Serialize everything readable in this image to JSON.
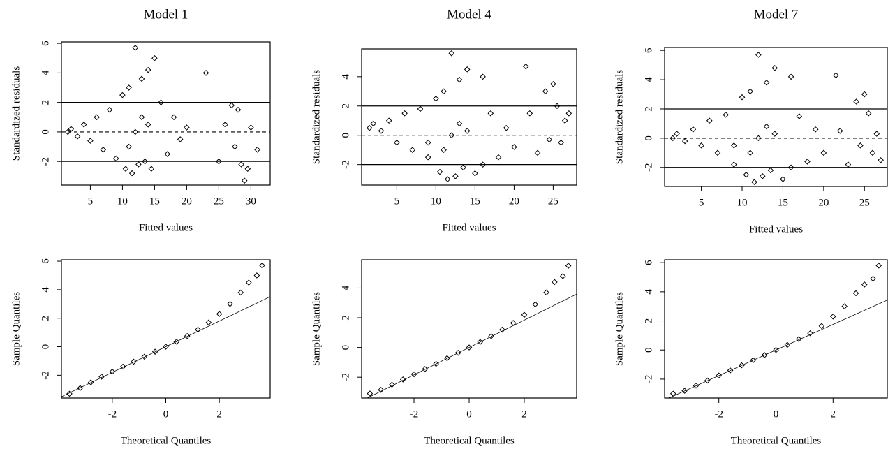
{
  "chart_data": [
    {
      "type": "scatter",
      "title": "Model 1",
      "x_label": "Fitted values",
      "y_label": "Standardized residuals",
      "xlim": [
        0.5,
        33
      ],
      "ylim": [
        -3.6,
        6.1
      ],
      "xticks": [
        5,
        10,
        15,
        20,
        25,
        30
      ],
      "yticks": [
        -2,
        0,
        2,
        4,
        6
      ],
      "hlines": [
        {
          "value": 2,
          "style": "solid"
        },
        {
          "value": 0,
          "style": "dashed"
        },
        {
          "value": -2,
          "style": "solid"
        }
      ],
      "series": [
        {
          "color": "#000000",
          "x": [
            1.5,
            2,
            3,
            4,
            5,
            6,
            7,
            8,
            9,
            10,
            10.5,
            11,
            11.5,
            12,
            12.5,
            13,
            13.5,
            14,
            14.5,
            15,
            16,
            17,
            18,
            19,
            20,
            23,
            25,
            26,
            27,
            27.5,
            28,
            28.5,
            29,
            29.5,
            30,
            31,
            12,
            13,
            11,
            14
          ],
          "values": [
            0,
            0.2,
            -0.3,
            0.5,
            -0.6,
            1,
            -1.2,
            1.5,
            -1.8,
            2.5,
            -2.5,
            3,
            -2.8,
            5.7,
            -2.2,
            3.6,
            -2,
            4.2,
            -2.5,
            5,
            2,
            -1.5,
            1,
            -0.5,
            0.3,
            4,
            -2,
            0.5,
            1.8,
            -1,
            1.5,
            -2.2,
            -3.3,
            -2.5,
            0.3,
            -1.2,
            0,
            1,
            -1,
            0.5
          ]
        }
      ]
    },
    {
      "type": "scatter",
      "title": "Model 4",
      "x_label": "Fitted values",
      "y_label": "Standardized residuals",
      "xlim": [
        0.5,
        28
      ],
      "ylim": [
        -3.4,
        5.9
      ],
      "xticks": [
        5,
        10,
        15,
        20,
        25
      ],
      "yticks": [
        -2,
        0,
        2,
        4
      ],
      "hlines": [
        {
          "value": 2,
          "style": "solid"
        },
        {
          "value": 0,
          "style": "dashed"
        },
        {
          "value": -2,
          "style": "solid"
        }
      ],
      "series": [
        {
          "color": "#000000",
          "x": [
            1.5,
            2,
            3,
            4,
            5,
            6,
            7,
            8,
            9,
            10,
            10.5,
            11,
            11.5,
            12,
            12.5,
            13,
            13.5,
            14,
            15,
            16,
            17,
            18,
            19,
            20,
            21.5,
            22,
            23,
            24,
            24.5,
            25,
            25.5,
            26,
            26.5,
            27,
            12,
            13,
            11,
            14,
            9,
            16
          ],
          "values": [
            0.5,
            0.8,
            0.3,
            1,
            -0.5,
            1.5,
            -1,
            1.8,
            -1.5,
            2.5,
            -2.5,
            3,
            -3,
            5.6,
            -2.8,
            3.8,
            -2.2,
            4.5,
            -2.6,
            4,
            1.5,
            -1.5,
            0.5,
            -0.8,
            4.7,
            1.5,
            -1.2,
            3,
            -0.3,
            3.5,
            2,
            -0.5,
            1,
            1.5,
            0,
            0.8,
            -1,
            0.3,
            -0.5,
            -2
          ]
        }
      ]
    },
    {
      "type": "scatter",
      "title": "Model 7",
      "x_label": "Fitted values",
      "y_label": "Standardized residuals",
      "xlim": [
        0.5,
        27.8
      ],
      "ylim": [
        -3.3,
        6.2
      ],
      "xticks": [
        5,
        10,
        15,
        20,
        25
      ],
      "yticks": [
        -2,
        0,
        2,
        4,
        6
      ],
      "hlines": [
        {
          "value": 2,
          "style": "solid"
        },
        {
          "value": 0,
          "style": "dashed"
        },
        {
          "value": -2,
          "style": "solid"
        }
      ],
      "series": [
        {
          "color": "#000000",
          "x": [
            1.5,
            2,
            3,
            4,
            5,
            6,
            7,
            8,
            9,
            10,
            10.5,
            11,
            11.5,
            12,
            12.5,
            13,
            13.5,
            14,
            15,
            16,
            17,
            18,
            19,
            20,
            21.5,
            22,
            23,
            24,
            24.5,
            25,
            25.5,
            26,
            26.5,
            27,
            12,
            13,
            11,
            14,
            9,
            16
          ],
          "values": [
            0,
            0.3,
            -0.2,
            0.6,
            -0.5,
            1.2,
            -1,
            1.6,
            -1.8,
            2.8,
            -2.5,
            3.2,
            -3,
            5.7,
            -2.6,
            3.8,
            -2.2,
            4.8,
            -2.8,
            4.2,
            1.5,
            -1.6,
            0.6,
            -1,
            4.3,
            0.5,
            -1.8,
            2.5,
            -0.5,
            3,
            1.7,
            -1,
            0.3,
            -1.5,
            0,
            0.8,
            -1,
            0.3,
            -0.5,
            -2
          ]
        }
      ]
    },
    {
      "type": "scatter",
      "x_label": "Theoretical Quantiles",
      "y_label": "Sample Quantiles",
      "xlim": [
        -3.9,
        3.9
      ],
      "ylim": [
        -3.6,
        6.1
      ],
      "xticks": [
        -2,
        0,
        2
      ],
      "yticks": [
        -2,
        0,
        2,
        4,
        6
      ],
      "reference_line": {
        "intercept": 0,
        "slope": 0.9
      },
      "series": [
        {
          "color": "#000000",
          "x": [
            -3.6,
            -3.2,
            -2.8,
            -2.4,
            -2,
            -1.6,
            -1.2,
            -0.8,
            -0.4,
            0,
            0.4,
            0.8,
            1.2,
            1.6,
            2,
            2.4,
            2.8,
            3.1,
            3.4,
            3.6
          ],
          "values": [
            -3.3,
            -2.9,
            -2.5,
            -2.1,
            -1.75,
            -1.4,
            -1.05,
            -0.7,
            -0.35,
            0,
            0.35,
            0.75,
            1.2,
            1.7,
            2.3,
            3,
            3.8,
            4.5,
            5,
            5.7
          ]
        }
      ]
    },
    {
      "type": "scatter",
      "x_label": "Theoretical Quantiles",
      "y_label": "Sample Quantiles",
      "xlim": [
        -3.9,
        3.9
      ],
      "ylim": [
        -3.4,
        5.9
      ],
      "xticks": [
        -2,
        0,
        2
      ],
      "yticks": [
        -2,
        0,
        2,
        4
      ],
      "reference_line": {
        "intercept": 0,
        "slope": 0.92
      },
      "series": [
        {
          "color": "#000000",
          "x": [
            -3.6,
            -3.2,
            -2.8,
            -2.4,
            -2,
            -1.6,
            -1.2,
            -0.8,
            -0.4,
            0,
            0.4,
            0.8,
            1.2,
            1.6,
            2,
            2.4,
            2.8,
            3.1,
            3.4,
            3.6
          ],
          "values": [
            -3.1,
            -2.85,
            -2.5,
            -2.15,
            -1.8,
            -1.45,
            -1.1,
            -0.72,
            -0.36,
            0,
            0.37,
            0.76,
            1.2,
            1.65,
            2.2,
            2.9,
            3.7,
            4.4,
            4.8,
            5.5
          ]
        }
      ]
    },
    {
      "type": "scatter",
      "x_label": "Theoretical Quantiles",
      "y_label": "Sample Quantiles",
      "xlim": [
        -3.9,
        3.9
      ],
      "ylim": [
        -3.3,
        6.2
      ],
      "xticks": [
        -2,
        0,
        2
      ],
      "yticks": [
        -2,
        0,
        2,
        4,
        6
      ],
      "reference_line": {
        "intercept": 0,
        "slope": 0.88
      },
      "series": [
        {
          "color": "#000000",
          "x": [
            -3.6,
            -3.2,
            -2.8,
            -2.4,
            -2,
            -1.6,
            -1.2,
            -0.8,
            -0.4,
            0,
            0.4,
            0.8,
            1.2,
            1.6,
            2,
            2.4,
            2.8,
            3.1,
            3.4,
            3.6
          ],
          "values": [
            -3,
            -2.8,
            -2.45,
            -2.1,
            -1.75,
            -1.4,
            -1.05,
            -0.7,
            -0.35,
            0,
            0.35,
            0.75,
            1.15,
            1.65,
            2.3,
            3,
            3.9,
            4.5,
            4.9,
            5.8
          ]
        }
      ]
    }
  ]
}
